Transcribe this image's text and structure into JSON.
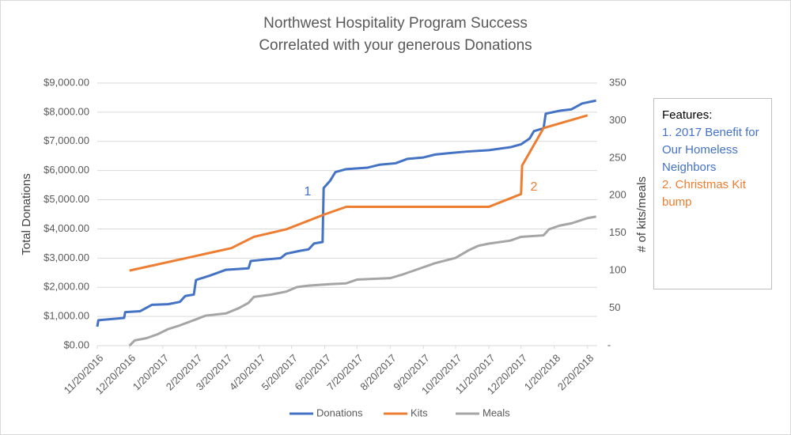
{
  "chart_data": {
    "type": "line",
    "title": "Northwest Hospitality Program Success",
    "subtitle": "Correlated with your generous Donations",
    "y_label": "Total Donations",
    "y2_label": "# of kits/meals",
    "notes_title": "Features:",
    "notes": [
      "1. 2017 Benefit for Our Homeless Neighbors",
      "2. Christmas Kit bump"
    ],
    "annotations": [
      "1",
      "2"
    ],
    "grid": true,
    "xlim": [
      "11/20/2016",
      "3/1/2018"
    ],
    "xticks": [
      "11/20/2016",
      "12/20/2016",
      "1/20/2017",
      "2/20/2017",
      "3/20/2017",
      "4/20/2017",
      "5/20/2017",
      "6/20/2017",
      "7/20/2017",
      "8/20/2017",
      "9/20/2017",
      "10/20/2017",
      "11/20/2017",
      "12/20/2017",
      "1/20/2018",
      "2/20/2018"
    ],
    "ylim": [
      0,
      9000
    ],
    "yticks": [
      {
        "value": 0,
        "label": "$0.00"
      },
      {
        "value": 1000,
        "label": "$1,000.00"
      },
      {
        "value": 2000,
        "label": "$2,000.00"
      },
      {
        "value": 3000,
        "label": "$3,000.00"
      },
      {
        "value": 4000,
        "label": "$4,000.00"
      },
      {
        "value": 5000,
        "label": "$5,000.00"
      },
      {
        "value": 6000,
        "label": "$6,000.00"
      },
      {
        "value": 7000,
        "label": "$7,000.00"
      },
      {
        "value": 8000,
        "label": "$8,000.00"
      },
      {
        "value": 9000,
        "label": "$9,000.00"
      }
    ],
    "y2lim": [
      0,
      350
    ],
    "y2ticks": [
      {
        "value": 0,
        "label": "-"
      },
      50,
      100,
      150,
      200,
      250,
      300,
      350
    ],
    "series": [
      {
        "name": "Donations",
        "color": "#4472c4",
        "axis": "y",
        "x": [
          "11/20/2016",
          "11/21/2016",
          "12/15/2016",
          "12/16/2016",
          "12/30/2016",
          "1/10/2017",
          "1/25/2017",
          "2/5/2017",
          "2/10/2017",
          "2/18/2017",
          "2/20/2017",
          "3/5/2017",
          "3/20/2017",
          "4/10/2017",
          "4/12/2017",
          "4/25/2017",
          "5/10/2017",
          "5/15/2017",
          "5/28/2017",
          "6/5/2017",
          "6/10/2017",
          "6/18/2017",
          "6/19/2017",
          "6/25/2017",
          "6/30/2017",
          "7/10/2017",
          "7/30/2017",
          "8/10/2017",
          "8/25/2017",
          "9/5/2017",
          "9/20/2017",
          "10/1/2017",
          "10/15/2017",
          "10/30/2017",
          "11/20/2017",
          "12/10/2017",
          "12/20/2017",
          "12/28/2017",
          "1/1/2018",
          "1/10/2018",
          "1/12/2018",
          "1/25/2018",
          "2/5/2018",
          "2/15/2018",
          "2/28/2018"
        ],
        "values": [
          650,
          870,
          950,
          1150,
          1180,
          1400,
          1420,
          1500,
          1700,
          1750,
          2250,
          2400,
          2600,
          2650,
          2900,
          2950,
          3000,
          3150,
          3250,
          3300,
          3500,
          3550,
          5400,
          5650,
          5950,
          6050,
          6100,
          6200,
          6250,
          6400,
          6450,
          6550,
          6600,
          6650,
          6700,
          6800,
          6900,
          7100,
          7350,
          7450,
          7950,
          8050,
          8100,
          8300,
          8400
        ]
      },
      {
        "name": "Kits",
        "color": "#ed7d31",
        "axis": "y2",
        "x": [
          "12/20/2016",
          "3/25/2017",
          "4/1/2017",
          "4/15/2017",
          "5/15/2017",
          "6/20/2017",
          "7/10/2017",
          "11/20/2017",
          "12/20/2017",
          "12/21/2017",
          "1/10/2018",
          "2/20/2018"
        ],
        "values": [
          100,
          130,
          135,
          145,
          155,
          175,
          185,
          185,
          202,
          240,
          290,
          307
        ]
      },
      {
        "name": "Meals",
        "color": "#a5a5a5",
        "axis": "y2",
        "x": [
          "12/20/2016",
          "12/25/2016",
          "1/5/2017",
          "1/15/2017",
          "1/25/2017",
          "2/5/2017",
          "2/20/2017",
          "3/1/2017",
          "3/20/2017",
          "4/1/2017",
          "4/10/2017",
          "4/15/2017",
          "5/1/2017",
          "5/15/2017",
          "5/25/2017",
          "6/5/2017",
          "6/25/2017",
          "7/10/2017",
          "7/20/2017",
          "8/20/2017",
          "9/1/2017",
          "9/15/2017",
          "10/1/2017",
          "10/20/2017",
          "11/1/2017",
          "11/10/2017",
          "11/20/2017",
          "12/10/2017",
          "12/20/2017",
          "1/10/2018",
          "1/15/2018",
          "1/25/2018",
          "2/5/2018",
          "2/20/2018",
          "2/28/2018"
        ],
        "values": [
          0,
          7,
          10,
          15,
          22,
          27,
          35,
          40,
          43,
          50,
          57,
          65,
          68,
          72,
          78,
          80,
          82,
          83,
          88,
          90,
          95,
          102,
          110,
          117,
          127,
          133,
          136,
          140,
          145,
          147,
          155,
          160,
          163,
          170,
          172
        ]
      }
    ]
  }
}
